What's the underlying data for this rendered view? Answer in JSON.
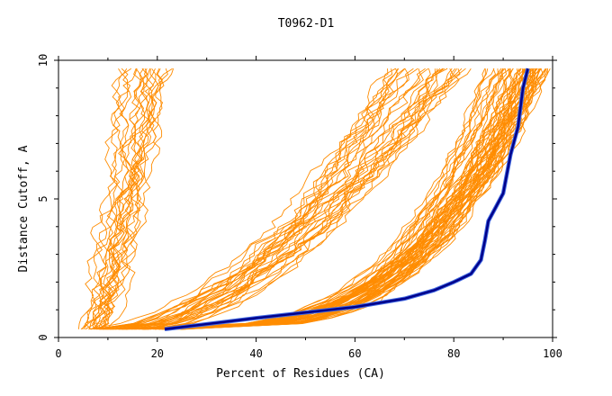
{
  "chart_data": {
    "type": "line",
    "title": "T0962-D1",
    "xlabel": "Percent of Residues (CA)",
    "ylabel": "Distance Cutoff, A",
    "xlim": [
      0,
      100
    ],
    "ylim": [
      0,
      10
    ],
    "xticks": [
      0,
      20,
      40,
      60,
      80,
      100
    ],
    "yticks": [
      0,
      5,
      10
    ],
    "grid": false,
    "colors": {
      "models": "#ff8c00",
      "highlight": "#00008b",
      "highlight_edge": "#4169e1",
      "axis": "#000000"
    },
    "model_bands": {
      "description": "Orange GDT curves of many models, grouped into three visible bundles",
      "low": {
        "count": 20,
        "start_pct": [
          4,
          10
        ],
        "end_pct": [
          12,
          24
        ]
      },
      "mid": {
        "count": 30,
        "start_pct": [
          6,
          20
        ],
        "end_pct": [
          67,
          82
        ]
      },
      "high": {
        "count": 60,
        "start_pct": [
          8,
          26
        ],
        "end_pct": [
          86,
          100
        ]
      }
    },
    "series": [
      {
        "name": "highlighted model",
        "x": [
          21.5,
          40,
          60,
          70,
          76,
          80,
          83.5,
          85.5,
          86.3,
          87,
          88.5,
          90,
          91.5,
          93,
          94,
          95
        ],
        "y": [
          0.3,
          0.7,
          1.1,
          1.4,
          1.7,
          2.0,
          2.3,
          2.8,
          3.5,
          4.2,
          4.7,
          5.2,
          6.6,
          7.6,
          9.0,
          9.7
        ]
      }
    ]
  }
}
